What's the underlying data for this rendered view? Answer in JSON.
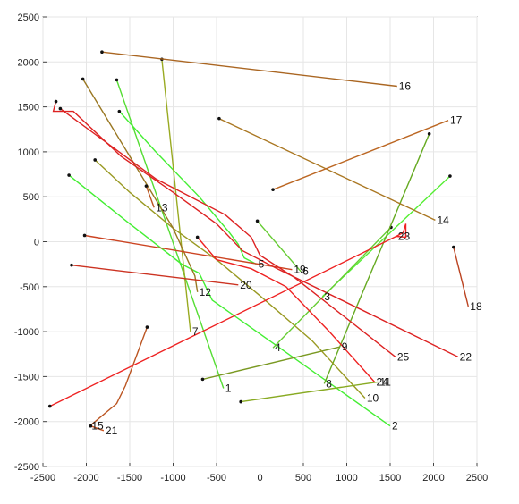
{
  "chart_data": {
    "type": "line",
    "title": "",
    "xlabel": "",
    "ylabel": "",
    "xlim": [
      -2500,
      2500
    ],
    "ylim": [
      -2500,
      2500
    ],
    "xticks": [
      -2500,
      -2000,
      -1500,
      -1000,
      -500,
      0,
      500,
      1000,
      1500,
      2000,
      2500
    ],
    "yticks": [
      -2500,
      -2000,
      -1500,
      -1000,
      -500,
      0,
      500,
      1000,
      1500,
      2000,
      2500
    ],
    "grid": true,
    "legend": "none",
    "series": [
      {
        "label": "1",
        "color": "#55dd33",
        "start": [
          -1650,
          1800
        ],
        "end": [
          -420,
          -1630
        ]
      },
      {
        "label": "2",
        "color": "#44ee33",
        "start": [
          -2200,
          740
        ],
        "end": [
          1500,
          -2050
        ],
        "path": [
          [
            -2200,
            740
          ],
          [
            -1500,
            200
          ],
          [
            -900,
            -250
          ],
          [
            -700,
            -350
          ],
          [
            -550,
            -650
          ],
          [
            1500,
            -2050
          ]
        ]
      },
      {
        "label": "3",
        "color": "#55ee33",
        "start": [
          2190,
          730
        ],
        "end": [
          720,
          -610
        ]
      },
      {
        "label": "4",
        "color": "#66cc33",
        "start": [
          1510,
          160
        ],
        "end": [
          150,
          -1180
        ]
      },
      {
        "label": "5",
        "color": "#44ee33",
        "start": [
          -1620,
          1450
        ],
        "end": [
          -40,
          -250
        ],
        "path": [
          [
            -1620,
            1450
          ],
          [
            -1200,
            1000
          ],
          [
            -700,
            500
          ],
          [
            -350,
            100
          ],
          [
            -250,
            -30
          ],
          [
            -180,
            -180
          ],
          [
            -40,
            -250
          ]
        ]
      },
      {
        "label": "6",
        "color": "#66cc33",
        "start": [
          -30,
          230
        ],
        "end": [
          470,
          -330
        ]
      },
      {
        "label": "7",
        "color": "#99aa22",
        "start": [
          -1130,
          2030
        ],
        "end": [
          -800,
          -1000
        ]
      },
      {
        "label": "8",
        "color": "#66aa22",
        "start": [
          1950,
          1200
        ],
        "end": [
          740,
          -1580
        ]
      },
      {
        "label": "9",
        "color": "#7a9922",
        "start": [
          -660,
          -1530
        ],
        "end": [
          920,
          -1170
        ]
      },
      {
        "label": "10",
        "color": "#999922",
        "start": [
          -1900,
          910
        ],
        "end": [
          1210,
          -1740
        ],
        "path": [
          [
            -1900,
            910
          ],
          [
            -1500,
            550
          ],
          [
            -1000,
            150
          ],
          [
            -500,
            -200
          ],
          [
            0,
            -600
          ],
          [
            600,
            -1100
          ],
          [
            1210,
            -1740
          ]
        ]
      },
      {
        "label": "11",
        "color": "#88aa22",
        "start": [
          -220,
          -1780
        ],
        "end": [
          1360,
          -1560
        ]
      },
      {
        "label": "12",
        "color": "#997722",
        "start": [
          -2040,
          1810
        ],
        "end": [
          -720,
          -560
        ],
        "path": [
          [
            -2040,
            1810
          ],
          [
            -1500,
            950
          ],
          [
            -1000,
            150
          ],
          [
            -750,
            -380
          ],
          [
            -720,
            -560
          ]
        ]
      },
      {
        "label": "13",
        "color": "#bb5522",
        "start": [
          -1310,
          620
        ],
        "end": [
          -1220,
          380
        ]
      },
      {
        "label": "14",
        "color": "#aa7722",
        "start": [
          -470,
          1370
        ],
        "end": [
          2020,
          240
        ]
      },
      {
        "label": "15",
        "color": "#bb5522",
        "start": [
          -1300,
          -950
        ],
        "end": [
          -1960,
          -2050
        ],
        "path": [
          [
            -1300,
            -950
          ],
          [
            -1550,
            -1600
          ],
          [
            -1650,
            -1800
          ],
          [
            -1960,
            -2050
          ]
        ]
      },
      {
        "label": "16",
        "color": "#aa6622",
        "start": [
          -1820,
          2110
        ],
        "end": [
          1580,
          1730
        ]
      },
      {
        "label": "17",
        "color": "#bb6622",
        "start": [
          150,
          580
        ],
        "end": [
          2170,
          1350
        ]
      },
      {
        "label": "18",
        "color": "#bb4422",
        "start": [
          2230,
          -60
        ],
        "end": [
          2400,
          -720
        ]
      },
      {
        "label": "19",
        "color": "#cc4422",
        "start": [
          -2020,
          70
        ],
        "end": [
          370,
          -310
        ]
      },
      {
        "label": "20",
        "color": "#cc3322",
        "start": [
          -2170,
          -260
        ],
        "end": [
          -250,
          -480
        ]
      },
      {
        "label": "21",
        "color": "#cc5522",
        "start": [
          -1950,
          -2050
        ],
        "end": [
          -1800,
          -2100
        ]
      },
      {
        "label": "22",
        "color": "#dd2222",
        "start": [
          -2350,
          1560
        ],
        "end": [
          2280,
          -1280
        ],
        "path": [
          [
            -2350,
            1560
          ],
          [
            -2380,
            1450
          ],
          [
            -2150,
            1450
          ],
          [
            -1600,
            950
          ],
          [
            -1000,
            550
          ],
          [
            -500,
            200
          ],
          [
            -200,
            -100
          ],
          [
            200,
            -300
          ],
          [
            2280,
            -1280
          ]
        ]
      },
      {
        "label": "23",
        "color": "#ee2222",
        "start": [
          -2420,
          -1830
        ],
        "end": [
          1570,
          60
        ],
        "path": [
          [
            -2420,
            -1830
          ],
          [
            1570,
            60
          ],
          [
            1650,
            100
          ],
          [
            1680,
            200
          ],
          [
            1680,
            50
          ],
          [
            1570,
            60
          ]
        ]
      },
      {
        "label": "24",
        "color": "#ee2222",
        "start": [
          -720,
          50
        ],
        "end": [
          1320,
          -1560
        ],
        "path": [
          [
            -720,
            50
          ],
          [
            -500,
            -200
          ],
          [
            -100,
            -300
          ],
          [
            300,
            -500
          ],
          [
            800,
            -1000
          ],
          [
            1320,
            -1560
          ]
        ]
      },
      {
        "label": "25",
        "color": "#dd2222",
        "start": [
          -2300,
          1480
        ],
        "end": [
          1560,
          -1280
        ],
        "path": [
          [
            -2300,
            1480
          ],
          [
            -1200,
            700
          ],
          [
            -400,
            300
          ],
          [
            -100,
            50
          ],
          [
            0,
            -150
          ],
          [
            400,
            -400
          ],
          [
            1560,
            -1280
          ]
        ]
      }
    ]
  }
}
